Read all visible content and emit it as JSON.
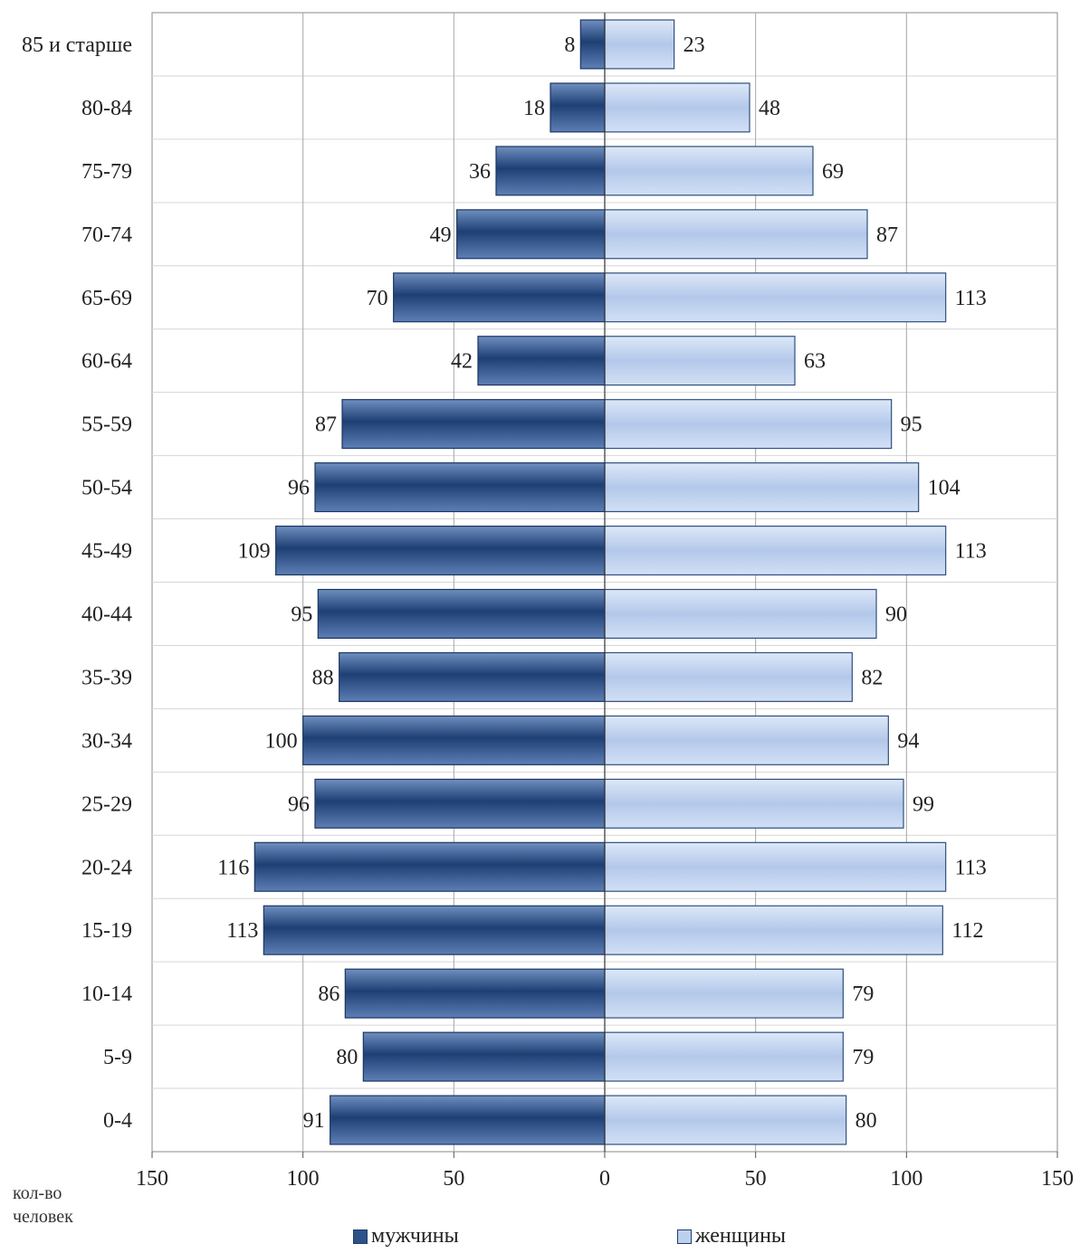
{
  "chart_data": {
    "type": "bar",
    "orientation": "horizontal-population-pyramid",
    "categories": [
      "85 и старше",
      "80-84",
      "75-79",
      "70-74",
      "65-69",
      "60-64",
      "55-59",
      "50-54",
      "45-49",
      "40-44",
      "35-39",
      "30-34",
      "25-29",
      "20-24",
      "15-19",
      "10-14",
      "5-9",
      "0-4"
    ],
    "series": [
      {
        "name": "мужчины",
        "color": "#2d5289",
        "values": [
          8,
          18,
          36,
          49,
          70,
          42,
          87,
          96,
          109,
          95,
          88,
          100,
          96,
          116,
          113,
          86,
          80,
          91
        ]
      },
      {
        "name": "женщины",
        "color": "#bcd0ee",
        "values": [
          23,
          48,
          69,
          87,
          113,
          63,
          95,
          104,
          113,
          90,
          82,
          94,
          99,
          113,
          112,
          79,
          79,
          80
        ]
      }
    ],
    "x_ticks": [
      "150",
      "100",
      "50",
      "0",
      "50",
      "100",
      "150"
    ],
    "xlim": [
      -150,
      150
    ],
    "xlabel": "кол-во\nчеловек",
    "grid": true,
    "legend_position": "bottom"
  },
  "unit_label_line1": "кол-во",
  "unit_label_line2": "человек"
}
